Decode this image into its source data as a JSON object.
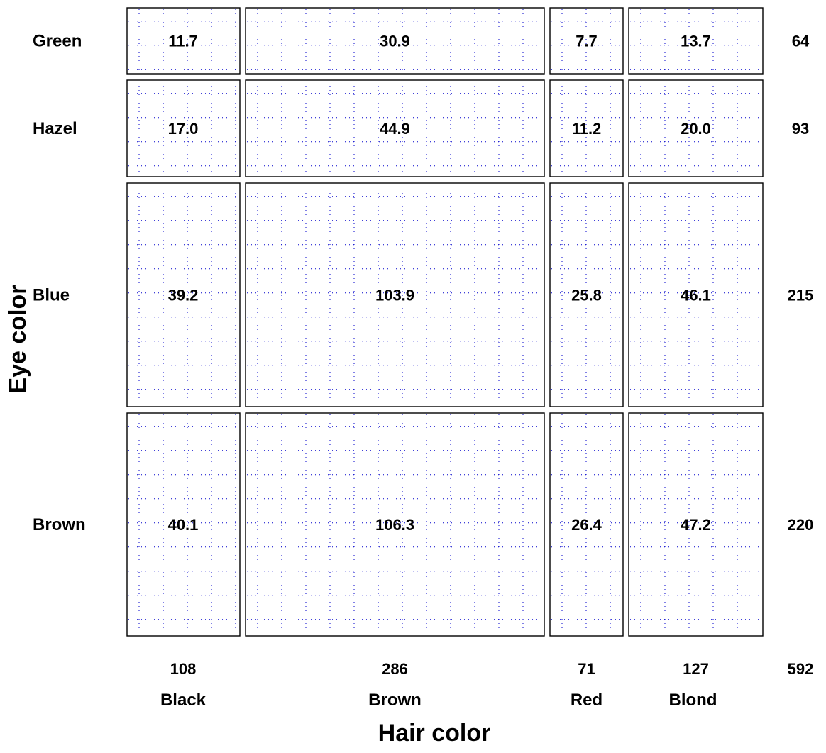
{
  "chart_data": {
    "type": "mosaic",
    "title": "",
    "xlabel": "Hair color",
    "ylabel": "Eye color",
    "columns": [
      "Black",
      "Brown",
      "Red",
      "Blond"
    ],
    "column_totals": [
      "108",
      "286",
      "71",
      "127"
    ],
    "rows": [
      "Green",
      "Hazel",
      "Blue",
      "Brown"
    ],
    "row_totals": [
      "64",
      "93",
      "215",
      "220"
    ],
    "grand_total": "592",
    "cells": [
      [
        "11.7",
        "30.9",
        "7.7",
        "13.7"
      ],
      [
        "17.0",
        "44.9",
        "11.2",
        "20.0"
      ],
      [
        "39.2",
        "103.9",
        "25.8",
        "46.1"
      ],
      [
        "40.1",
        "106.3",
        "26.4",
        "47.2"
      ]
    ],
    "colors": {
      "grid": "#0000cc",
      "border": "#000000"
    }
  }
}
